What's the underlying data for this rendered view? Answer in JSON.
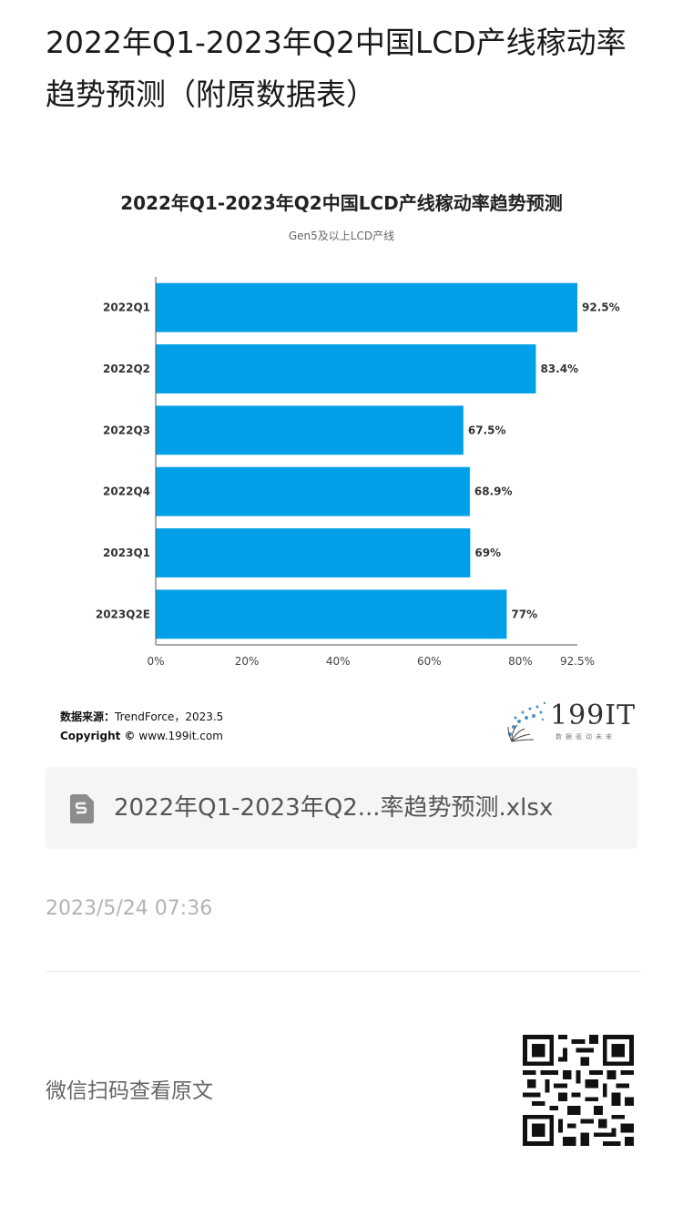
{
  "article": {
    "title": "2022年Q1-2023年Q2中国LCD产线稼动率趋势预测（附原数据表）"
  },
  "chart_data": {
    "type": "bar",
    "orientation": "horizontal",
    "title": "2022年Q1-2023年Q2中国LCD产线稼动率趋势预测",
    "subtitle": "Gen5及以上LCD产线",
    "categories": [
      "2022Q1",
      "2022Q2",
      "2022Q3",
      "2022Q4",
      "2023Q1",
      "2023Q2E"
    ],
    "values": [
      92.5,
      83.4,
      67.5,
      68.9,
      69,
      77
    ],
    "value_labels": [
      "92.5%",
      "83.4%",
      "67.5%",
      "68.9%",
      "69%",
      "77%"
    ],
    "xlim": [
      0,
      92.5
    ],
    "x_ticks": [
      0,
      20,
      40,
      60,
      80,
      92.5
    ],
    "x_tick_labels": [
      "0%",
      "20%",
      "40%",
      "60%",
      "80%",
      "92.5%"
    ],
    "bar_color": "#00a0e9",
    "grid": false,
    "legend": "none"
  },
  "source": {
    "label": "数据来源：",
    "text": "TrendForce，2023.5",
    "copyright_label": "Copyright ©",
    "copyright_text": "www.199it.com"
  },
  "logo": {
    "text": "199IT",
    "subtext": "数据驱动未来"
  },
  "attachment": {
    "icon": "spreadsheet-file-icon",
    "name": "2022年Q1-2023年Q2...率趋势预测.xlsx"
  },
  "post": {
    "date": "2023/5/24 07:36"
  },
  "footer": {
    "wechat_text": "微信扫码查看原文",
    "qr_icon": "qr-code-icon"
  }
}
